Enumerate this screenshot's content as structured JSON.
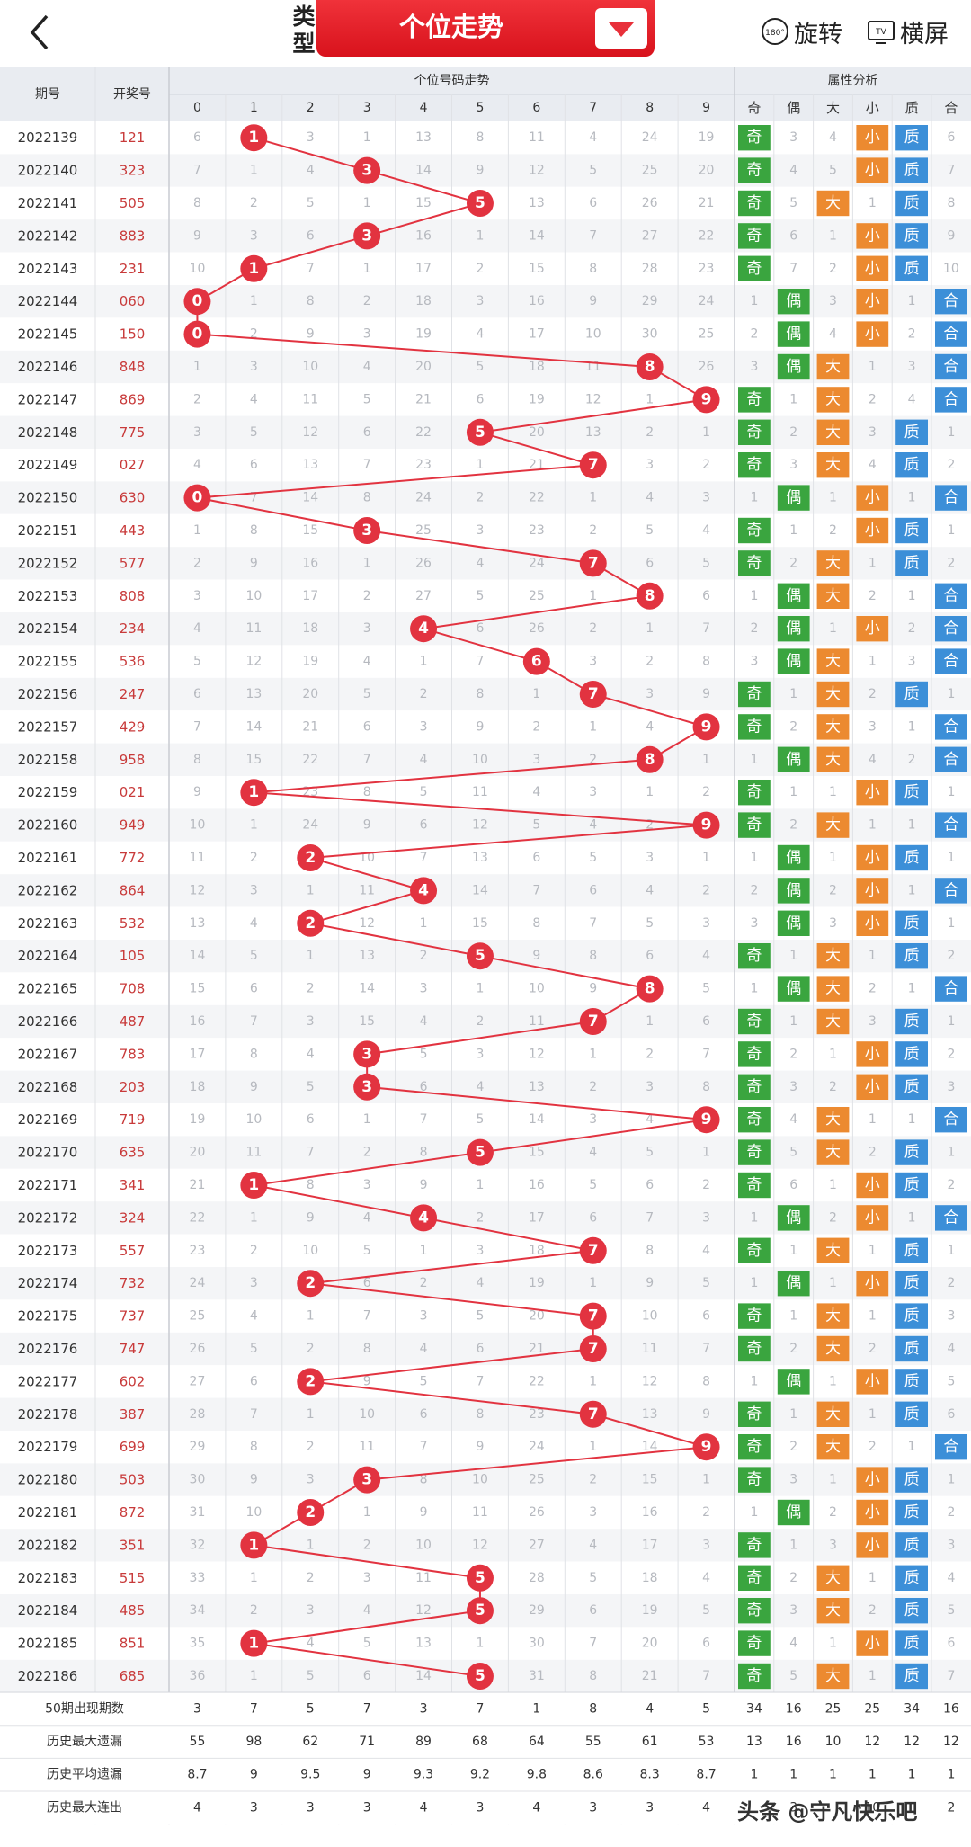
{
  "header": {
    "type_label": "类型",
    "title": "个位走势",
    "rotate_badge": "180°",
    "rotate_label": "旋转",
    "landscape_badge": "TV",
    "landscape_label": "横屏",
    "icons": [
      "back-arrow-icon",
      "dropdown-arrow-icon",
      "rotate-icon",
      "tv-icon"
    ]
  },
  "table": {
    "col_period": "期号",
    "col_draw": "开奖号",
    "group_trend": "个位号码走势",
    "group_attr": "属性分析",
    "digits": [
      "0",
      "1",
      "2",
      "3",
      "4",
      "5",
      "6",
      "7",
      "8",
      "9"
    ],
    "attrs": [
      "奇",
      "偶",
      "大",
      "小",
      "质",
      "合"
    ],
    "rows": [
      [
        "2022139",
        "121",
        [
          "6",
          "1",
          "3",
          "1",
          "13",
          "8",
          "11",
          "4",
          "24",
          "19"
        ],
        [
          "奇",
          "3",
          "4",
          "小",
          "质",
          "6"
        ]
      ],
      [
        "2022140",
        "323",
        [
          "7",
          "1",
          "4",
          "3",
          "14",
          "9",
          "12",
          "5",
          "25",
          "20"
        ],
        [
          "奇",
          "4",
          "5",
          "小",
          "质",
          "7"
        ]
      ],
      [
        "2022141",
        "505",
        [
          "8",
          "2",
          "5",
          "1",
          "15",
          "5",
          "13",
          "6",
          "26",
          "21"
        ],
        [
          "奇",
          "5",
          "大",
          "1",
          "质",
          "8"
        ]
      ],
      [
        "2022142",
        "883",
        [
          "9",
          "3",
          "6",
          "3",
          "16",
          "1",
          "14",
          "7",
          "27",
          "22"
        ],
        [
          "奇",
          "6",
          "1",
          "小",
          "质",
          "9"
        ]
      ],
      [
        "2022143",
        "231",
        [
          "10",
          "1",
          "7",
          "1",
          "17",
          "2",
          "15",
          "8",
          "28",
          "23"
        ],
        [
          "奇",
          "7",
          "2",
          "小",
          "质",
          "10"
        ]
      ],
      [
        "2022144",
        "060",
        [
          "0",
          "1",
          "8",
          "2",
          "18",
          "3",
          "16",
          "9",
          "29",
          "24"
        ],
        [
          "1",
          "偶",
          "3",
          "小",
          "1",
          "合"
        ]
      ],
      [
        "2022145",
        "150",
        [
          "0",
          "2",
          "9",
          "3",
          "19",
          "4",
          "17",
          "10",
          "30",
          "25"
        ],
        [
          "2",
          "偶",
          "4",
          "小",
          "2",
          "合"
        ]
      ],
      [
        "2022146",
        "848",
        [
          "1",
          "3",
          "10",
          "4",
          "20",
          "5",
          "18",
          "11",
          "8",
          "26"
        ],
        [
          "3",
          "偶",
          "大",
          "1",
          "3",
          "合"
        ]
      ],
      [
        "2022147",
        "869",
        [
          "2",
          "4",
          "11",
          "5",
          "21",
          "6",
          "19",
          "12",
          "1",
          "9"
        ],
        [
          "奇",
          "1",
          "大",
          "2",
          "4",
          "合"
        ]
      ],
      [
        "2022148",
        "775",
        [
          "3",
          "5",
          "12",
          "6",
          "22",
          "5",
          "20",
          "13",
          "2",
          "1"
        ],
        [
          "奇",
          "2",
          "大",
          "3",
          "质",
          "1"
        ]
      ],
      [
        "2022149",
        "027",
        [
          "4",
          "6",
          "13",
          "7",
          "23",
          "1",
          "21",
          "7",
          "3",
          "2"
        ],
        [
          "奇",
          "3",
          "大",
          "4",
          "质",
          "2"
        ]
      ],
      [
        "2022150",
        "630",
        [
          "0",
          "7",
          "14",
          "8",
          "24",
          "2",
          "22",
          "1",
          "4",
          "3"
        ],
        [
          "1",
          "偶",
          "1",
          "小",
          "1",
          "合"
        ]
      ],
      [
        "2022151",
        "443",
        [
          "1",
          "8",
          "15",
          "3",
          "25",
          "3",
          "23",
          "2",
          "5",
          "4"
        ],
        [
          "奇",
          "1",
          "2",
          "小",
          "质",
          "1"
        ]
      ],
      [
        "2022152",
        "577",
        [
          "2",
          "9",
          "16",
          "1",
          "26",
          "4",
          "24",
          "7",
          "6",
          "5"
        ],
        [
          "奇",
          "2",
          "大",
          "1",
          "质",
          "2"
        ]
      ],
      [
        "2022153",
        "808",
        [
          "3",
          "10",
          "17",
          "2",
          "27",
          "5",
          "25",
          "1",
          "8",
          "6"
        ],
        [
          "1",
          "偶",
          "大",
          "2",
          "1",
          "合"
        ]
      ],
      [
        "2022154",
        "234",
        [
          "4",
          "11",
          "18",
          "3",
          "4",
          "6",
          "26",
          "2",
          "1",
          "7"
        ],
        [
          "2",
          "偶",
          "1",
          "小",
          "2",
          "合"
        ]
      ],
      [
        "2022155",
        "536",
        [
          "5",
          "12",
          "19",
          "4",
          "1",
          "7",
          "6",
          "3",
          "2",
          "8"
        ],
        [
          "3",
          "偶",
          "大",
          "1",
          "3",
          "合"
        ]
      ],
      [
        "2022156",
        "247",
        [
          "6",
          "13",
          "20",
          "5",
          "2",
          "8",
          "1",
          "7",
          "3",
          "9"
        ],
        [
          "奇",
          "1",
          "大",
          "2",
          "质",
          "1"
        ]
      ],
      [
        "2022157",
        "429",
        [
          "7",
          "14",
          "21",
          "6",
          "3",
          "9",
          "2",
          "1",
          "4",
          "9"
        ],
        [
          "奇",
          "2",
          "大",
          "3",
          "1",
          "合"
        ]
      ],
      [
        "2022158",
        "958",
        [
          "8",
          "15",
          "22",
          "7",
          "4",
          "10",
          "3",
          "2",
          "8",
          "1"
        ],
        [
          "1",
          "偶",
          "大",
          "4",
          "2",
          "合"
        ]
      ],
      [
        "2022159",
        "021",
        [
          "9",
          "1",
          "23",
          "8",
          "5",
          "11",
          "4",
          "3",
          "1",
          "2"
        ],
        [
          "奇",
          "1",
          "1",
          "小",
          "质",
          "1"
        ]
      ],
      [
        "2022160",
        "949",
        [
          "10",
          "1",
          "24",
          "9",
          "6",
          "12",
          "5",
          "4",
          "2",
          "9"
        ],
        [
          "奇",
          "2",
          "大",
          "1",
          "1",
          "合"
        ]
      ],
      [
        "2022161",
        "772",
        [
          "11",
          "2",
          "2",
          "10",
          "7",
          "13",
          "6",
          "5",
          "3",
          "1"
        ],
        [
          "1",
          "偶",
          "1",
          "小",
          "质",
          "1"
        ]
      ],
      [
        "2022162",
        "864",
        [
          "12",
          "3",
          "1",
          "11",
          "4",
          "14",
          "7",
          "6",
          "4",
          "2"
        ],
        [
          "2",
          "偶",
          "2",
          "小",
          "1",
          "合"
        ]
      ],
      [
        "2022163",
        "532",
        [
          "13",
          "4",
          "2",
          "12",
          "1",
          "15",
          "8",
          "7",
          "5",
          "3"
        ],
        [
          "3",
          "偶",
          "3",
          "小",
          "质",
          "1"
        ]
      ],
      [
        "2022164",
        "105",
        [
          "14",
          "5",
          "1",
          "13",
          "2",
          "5",
          "9",
          "8",
          "6",
          "4"
        ],
        [
          "奇",
          "1",
          "大",
          "1",
          "质",
          "2"
        ]
      ],
      [
        "2022165",
        "708",
        [
          "15",
          "6",
          "2",
          "14",
          "3",
          "1",
          "10",
          "9",
          "8",
          "5"
        ],
        [
          "1",
          "偶",
          "大",
          "2",
          "1",
          "合"
        ]
      ],
      [
        "2022166",
        "487",
        [
          "16",
          "7",
          "3",
          "15",
          "4",
          "2",
          "11",
          "7",
          "1",
          "6"
        ],
        [
          "奇",
          "1",
          "大",
          "3",
          "质",
          "1"
        ]
      ],
      [
        "2022167",
        "783",
        [
          "17",
          "8",
          "4",
          "3",
          "5",
          "3",
          "12",
          "1",
          "2",
          "7"
        ],
        [
          "奇",
          "2",
          "1",
          "小",
          "质",
          "2"
        ]
      ],
      [
        "2022168",
        "203",
        [
          "18",
          "9",
          "5",
          "3",
          "6",
          "4",
          "13",
          "2",
          "3",
          "8"
        ],
        [
          "奇",
          "3",
          "2",
          "小",
          "质",
          "3"
        ]
      ],
      [
        "2022169",
        "719",
        [
          "19",
          "10",
          "6",
          "1",
          "7",
          "5",
          "14",
          "3",
          "4",
          "9"
        ],
        [
          "奇",
          "4",
          "大",
          "1",
          "1",
          "合"
        ]
      ],
      [
        "2022170",
        "635",
        [
          "20",
          "11",
          "7",
          "2",
          "8",
          "5",
          "15",
          "4",
          "5",
          "1"
        ],
        [
          "奇",
          "5",
          "大",
          "2",
          "质",
          "1"
        ]
      ],
      [
        "2022171",
        "341",
        [
          "21",
          "1",
          "8",
          "3",
          "9",
          "1",
          "16",
          "5",
          "6",
          "2"
        ],
        [
          "奇",
          "6",
          "1",
          "小",
          "质",
          "2"
        ]
      ],
      [
        "2022172",
        "324",
        [
          "22",
          "1",
          "9",
          "4",
          "4",
          "2",
          "17",
          "6",
          "7",
          "3"
        ],
        [
          "1",
          "偶",
          "2",
          "小",
          "1",
          "合"
        ]
      ],
      [
        "2022173",
        "557",
        [
          "23",
          "2",
          "10",
          "5",
          "1",
          "3",
          "18",
          "7",
          "8",
          "4"
        ],
        [
          "奇",
          "1",
          "大",
          "1",
          "质",
          "1"
        ]
      ],
      [
        "2022174",
        "732",
        [
          "24",
          "3",
          "2",
          "6",
          "2",
          "4",
          "19",
          "1",
          "9",
          "5"
        ],
        [
          "1",
          "偶",
          "1",
          "小",
          "质",
          "2"
        ]
      ],
      [
        "2022175",
        "737",
        [
          "25",
          "4",
          "1",
          "7",
          "3",
          "5",
          "20",
          "7",
          "10",
          "6"
        ],
        [
          "奇",
          "1",
          "大",
          "1",
          "质",
          "3"
        ]
      ],
      [
        "2022176",
        "747",
        [
          "26",
          "5",
          "2",
          "8",
          "4",
          "6",
          "21",
          "7",
          "11",
          "7"
        ],
        [
          "奇",
          "2",
          "大",
          "2",
          "质",
          "4"
        ]
      ],
      [
        "2022177",
        "602",
        [
          "27",
          "6",
          "2",
          "9",
          "5",
          "7",
          "22",
          "1",
          "12",
          "8"
        ],
        [
          "1",
          "偶",
          "1",
          "小",
          "质",
          "5"
        ]
      ],
      [
        "2022178",
        "387",
        [
          "28",
          "7",
          "1",
          "10",
          "6",
          "8",
          "23",
          "7",
          "13",
          "9"
        ],
        [
          "奇",
          "1",
          "大",
          "1",
          "质",
          "6"
        ]
      ],
      [
        "2022179",
        "699",
        [
          "29",
          "8",
          "2",
          "11",
          "7",
          "9",
          "24",
          "1",
          "14",
          "9"
        ],
        [
          "奇",
          "2",
          "大",
          "2",
          "1",
          "合"
        ]
      ],
      [
        "2022180",
        "503",
        [
          "30",
          "9",
          "3",
          "3",
          "8",
          "10",
          "25",
          "2",
          "15",
          "1"
        ],
        [
          "奇",
          "3",
          "1",
          "小",
          "质",
          "1"
        ]
      ],
      [
        "2022181",
        "872",
        [
          "31",
          "10",
          "2",
          "1",
          "9",
          "11",
          "26",
          "3",
          "16",
          "2"
        ],
        [
          "1",
          "偶",
          "2",
          "小",
          "质",
          "2"
        ]
      ],
      [
        "2022182",
        "351",
        [
          "32",
          "1",
          "1",
          "2",
          "10",
          "12",
          "27",
          "4",
          "17",
          "3"
        ],
        [
          "奇",
          "1",
          "3",
          "小",
          "质",
          "3"
        ]
      ],
      [
        "2022183",
        "515",
        [
          "33",
          "1",
          "2",
          "3",
          "11",
          "5",
          "28",
          "5",
          "18",
          "4"
        ],
        [
          "奇",
          "2",
          "大",
          "1",
          "质",
          "4"
        ]
      ],
      [
        "2022184",
        "485",
        [
          "34",
          "2",
          "3",
          "4",
          "12",
          "5",
          "29",
          "6",
          "19",
          "5"
        ],
        [
          "奇",
          "3",
          "大",
          "2",
          "质",
          "5"
        ]
      ],
      [
        "2022185",
        "851",
        [
          "35",
          "1",
          "4",
          "5",
          "13",
          "1",
          "30",
          "7",
          "20",
          "6"
        ],
        [
          "奇",
          "4",
          "1",
          "小",
          "质",
          "6"
        ]
      ],
      [
        "2022186",
        "685",
        [
          "36",
          "1",
          "5",
          "6",
          "14",
          "5",
          "31",
          "8",
          "21",
          "7"
        ],
        [
          "奇",
          "5",
          "大",
          "1",
          "质",
          "7"
        ]
      ]
    ],
    "stats": [
      {
        "label": "50期出现期数",
        "values": [
          "3",
          "7",
          "5",
          "7",
          "3",
          "7",
          "1",
          "8",
          "4",
          "5"
        ],
        "attrs": [
          "34",
          "16",
          "25",
          "25",
          "34",
          "16"
        ]
      },
      {
        "label": "历史最大遗漏",
        "values": [
          "55",
          "98",
          "62",
          "71",
          "89",
          "68",
          "64",
          "55",
          "61",
          "53"
        ],
        "attrs": [
          "13",
          "16",
          "10",
          "12",
          "12",
          "12"
        ]
      },
      {
        "label": "历史平均遗漏",
        "values": [
          "8.7",
          "9",
          "9.5",
          "9",
          "9.3",
          "9.2",
          "9.8",
          "8.6",
          "8.3",
          "8.7"
        ],
        "attrs": [
          "1",
          "1",
          "1",
          "1",
          "1",
          "1"
        ]
      },
      {
        "label": "历史最大连出",
        "values": [
          "4",
          "3",
          "3",
          "3",
          "4",
          "3",
          "4",
          "3",
          "3",
          "4"
        ],
        "attrs": [
          "",
          "3",
          "",
          "10",
          "",
          "2"
        ]
      }
    ]
  },
  "footer": {
    "watermark": "头条 @守凡快乐吧"
  },
  "colors": {
    "accent": "#e8303a",
    "odd": "#3aa53f",
    "even": "#3aa53f",
    "big": "#ec8a30",
    "small": "#ec8a30",
    "prime": "#3c8fd8",
    "composite": "#3c8fd8",
    "line": "#e23340"
  }
}
